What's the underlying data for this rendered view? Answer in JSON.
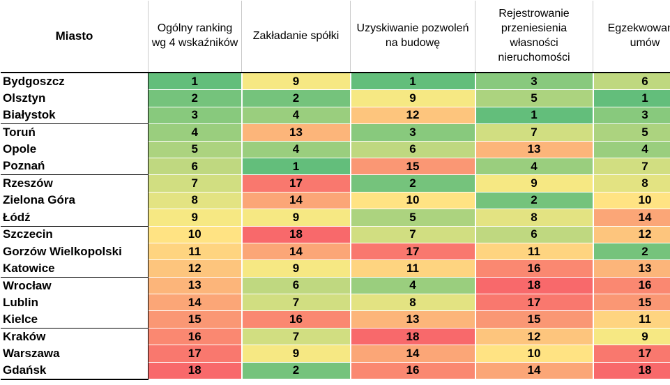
{
  "chart_data": {
    "type": "table",
    "subtype": "heatmap-ranking",
    "color_scale": {
      "low": "#63be7b",
      "mid": "#ffeb84",
      "high": "#f8696b"
    },
    "columns": [
      "Miasto",
      "Ogólny ranking wg 4 wskaźników",
      "Zakładanie spółki",
      "Uzyskiwanie pozwoleń na budowę",
      "Rejestrowanie przeniesienia własności nieruchomości",
      "Egzekwowanie umów"
    ],
    "rows": [
      {
        "city": "Bydgoszcz",
        "values": [
          1,
          9,
          1,
          3,
          6
        ]
      },
      {
        "city": "Olsztyn",
        "values": [
          2,
          2,
          9,
          5,
          1
        ]
      },
      {
        "city": "Białystok",
        "values": [
          3,
          4,
          12,
          1,
          3
        ]
      },
      {
        "city": "Toruń",
        "values": [
          4,
          13,
          3,
          7,
          5
        ]
      },
      {
        "city": "Opole",
        "values": [
          5,
          4,
          6,
          13,
          4
        ]
      },
      {
        "city": "Poznań",
        "values": [
          6,
          1,
          15,
          4,
          7
        ]
      },
      {
        "city": "Rzeszów",
        "values": [
          7,
          17,
          2,
          9,
          8
        ]
      },
      {
        "city": "Zielona Góra",
        "values": [
          8,
          14,
          10,
          2,
          10
        ]
      },
      {
        "city": "Łódź",
        "values": [
          9,
          9,
          5,
          8,
          14
        ]
      },
      {
        "city": "Szczecin",
        "values": [
          10,
          18,
          7,
          6,
          12
        ]
      },
      {
        "city": "Gorzów Wielkopolski",
        "values": [
          11,
          14,
          17,
          11,
          2
        ]
      },
      {
        "city": "Katowice",
        "values": [
          12,
          9,
          11,
          16,
          13
        ]
      },
      {
        "city": "Wrocław",
        "values": [
          13,
          6,
          4,
          18,
          16
        ]
      },
      {
        "city": "Lublin",
        "values": [
          14,
          7,
          8,
          17,
          15
        ]
      },
      {
        "city": "Kielce",
        "values": [
          15,
          16,
          13,
          15,
          11
        ]
      },
      {
        "city": "Kraków",
        "values": [
          16,
          7,
          18,
          12,
          9
        ]
      },
      {
        "city": "Warszawa",
        "values": [
          17,
          9,
          14,
          10,
          17
        ]
      },
      {
        "city": "Gdańsk",
        "values": [
          18,
          2,
          16,
          14,
          18
        ]
      }
    ],
    "value_range": [
      1,
      18
    ]
  }
}
